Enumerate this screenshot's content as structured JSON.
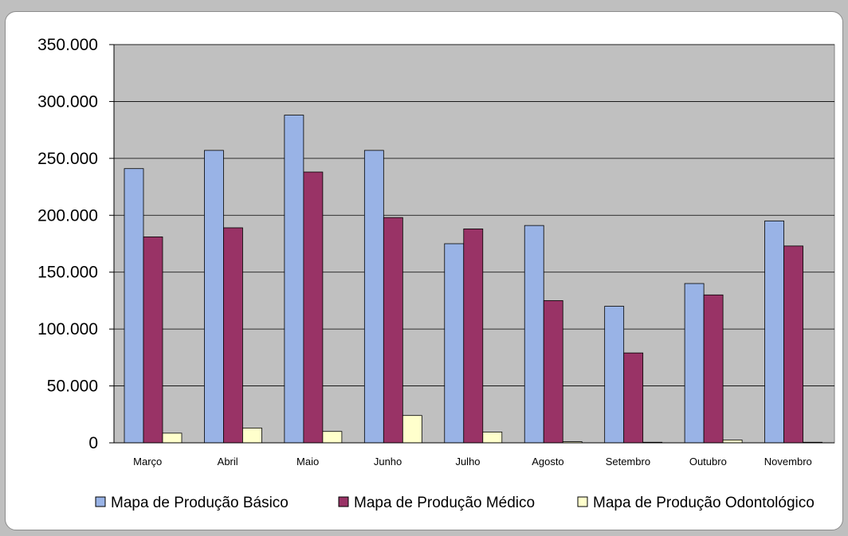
{
  "chart_data": {
    "type": "bar",
    "categories": [
      "Março",
      "Abril",
      "Maio",
      "Junho",
      "Julho",
      "Agosto",
      "Setembro",
      "Outubro",
      "Novembro"
    ],
    "series": [
      {
        "name": "Mapa de Produção Básico",
        "color": "#99b3e6",
        "values": [
          241000,
          257000,
          288000,
          257000,
          175000,
          191000,
          120000,
          140000,
          195000
        ]
      },
      {
        "name": "Mapa de Produção Médico",
        "color": "#993366",
        "values": [
          181000,
          189000,
          238000,
          198000,
          188000,
          125000,
          79000,
          130000,
          173000
        ]
      },
      {
        "name": "Mapa de Produção Odontológico",
        "color": "#ffffcc",
        "values": [
          8500,
          13000,
          10000,
          24000,
          9500,
          1000,
          500,
          2500,
          500
        ]
      }
    ],
    "yticks": [
      "0",
      "50.000",
      "100.000",
      "150.000",
      "200.000",
      "250.000",
      "300.000",
      "350.000"
    ],
    "ylim": [
      0,
      350000
    ],
    "grid": true,
    "legend_position": "bottom",
    "plot_background": "#c0c0c0"
  }
}
